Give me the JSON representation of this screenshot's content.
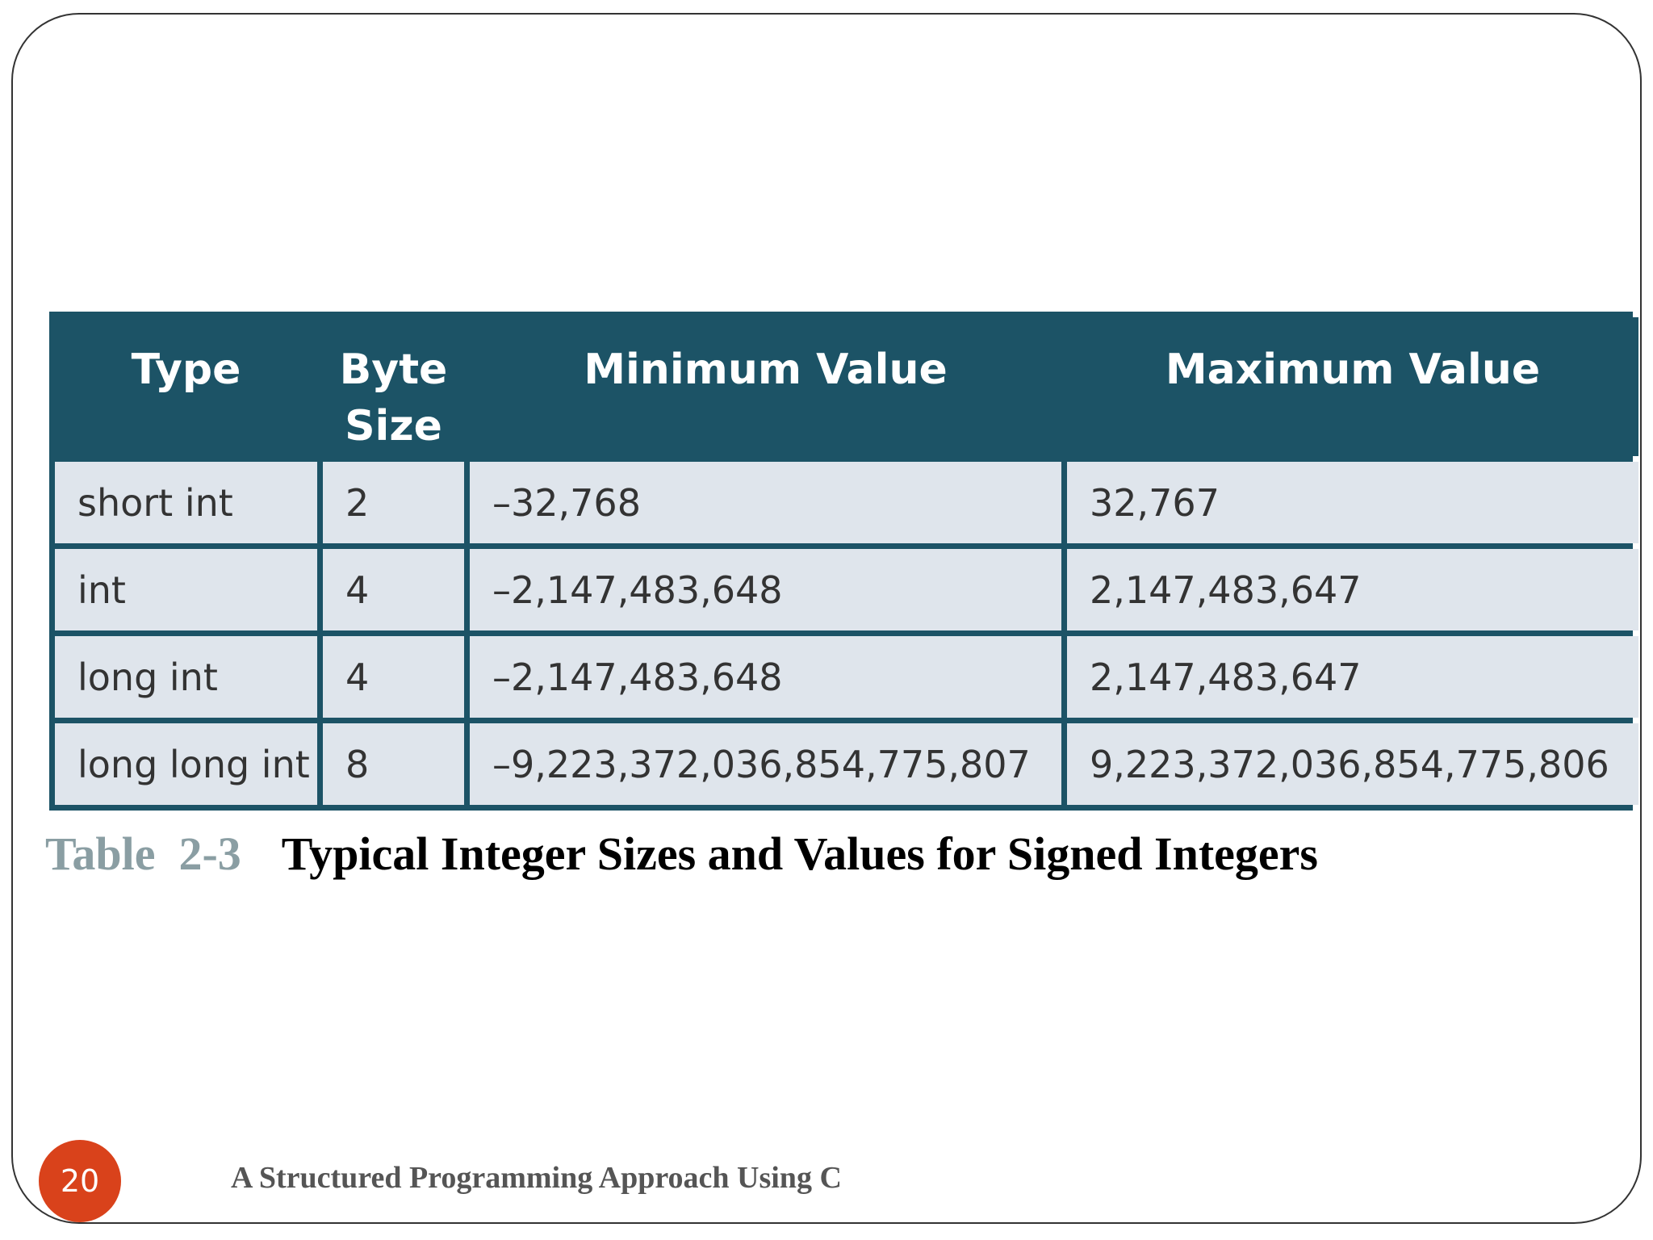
{
  "table": {
    "headers": [
      "Type",
      "Byte Size",
      "Minimum Value",
      "Maximum Value"
    ],
    "header_lines": [
      [
        "Type"
      ],
      [
        "Byte",
        "Size"
      ],
      [
        "Minimum Value"
      ],
      [
        "Maximum Value"
      ]
    ],
    "rows": [
      [
        "short int",
        "2",
        "–32,768",
        "32,767"
      ],
      [
        "int",
        "4",
        "–2,147,483,648",
        "2,147,483,647"
      ],
      [
        "long int",
        "4",
        "–2,147,483,648",
        "2,147,483,647"
      ],
      [
        "long long int",
        "8",
        "–9,223,372,036,854,775,807",
        "9,223,372,036,854,775,806"
      ]
    ]
  },
  "caption": {
    "label": "Table  2-3",
    "text": "Typical Integer Sizes and Values for Signed Integers"
  },
  "footer": {
    "page_number": "20",
    "title": "A Structured Programming Approach Using C"
  },
  "colors": {
    "header_bg": "#1c5366",
    "cell_bg": "#dfe5ec",
    "caption_label": "#8a9ea3",
    "page_badge": "#d9421b"
  }
}
